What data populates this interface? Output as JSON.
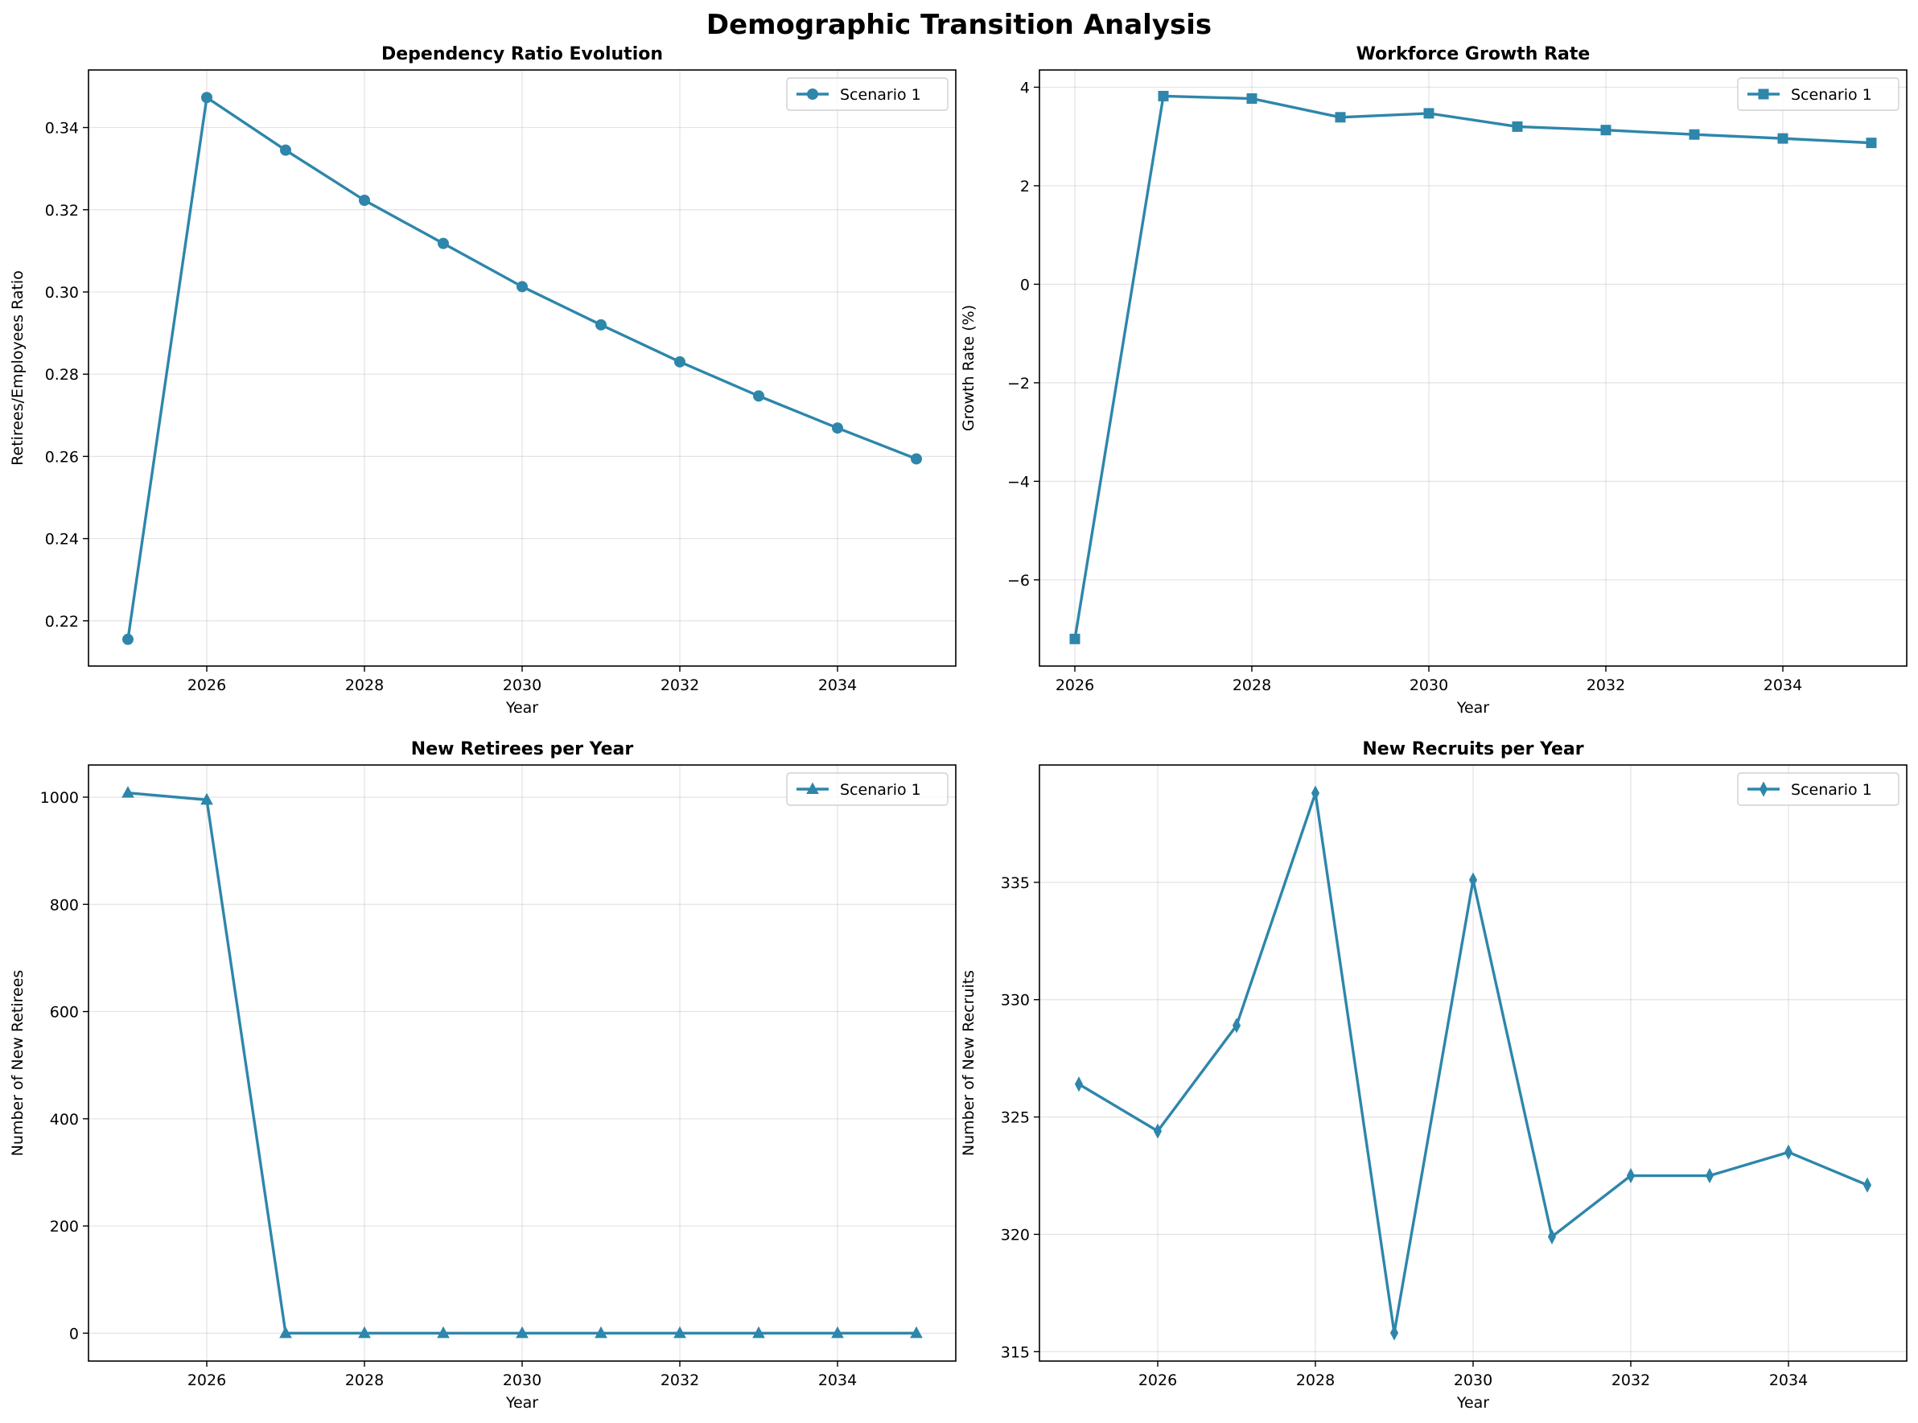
{
  "figure": {
    "suptitle": "Demographic Transition Analysis"
  },
  "colors": {
    "series": "#2E86AB"
  },
  "chart_data": [
    {
      "id": "dependency",
      "type": "line",
      "title": "Dependency Ratio Evolution",
      "xlabel": "Year",
      "ylabel": "Retirees/Employees Ratio",
      "marker": "circle",
      "legend": "top-right",
      "grid": true,
      "xlim": [
        2024.5,
        2035.5
      ],
      "ylim": [
        0.209,
        0.354
      ],
      "xticks": [
        2026,
        2028,
        2030,
        2032,
        2034
      ],
      "yticks": [
        0.22,
        0.24,
        0.26,
        0.28,
        0.3,
        0.32,
        0.34
      ],
      "ytick_decimals": 2,
      "series": [
        {
          "name": "Scenario 1",
          "x": [
            2025,
            2026,
            2027,
            2028,
            2029,
            2030,
            2031,
            2032,
            2033,
            2034,
            2035
          ],
          "y": [
            0.2155,
            0.3473,
            0.3345,
            0.3223,
            0.3118,
            0.3013,
            0.292,
            0.283,
            0.2747,
            0.2669,
            0.2594
          ]
        }
      ]
    },
    {
      "id": "growth",
      "type": "line",
      "title": "Workforce Growth Rate",
      "xlabel": "Year",
      "ylabel": "Growth Rate (%)",
      "marker": "square",
      "legend": "top-right",
      "grid": true,
      "xlim": [
        2025.6,
        2035.4
      ],
      "ylim": [
        -7.75,
        4.35
      ],
      "xticks": [
        2026,
        2028,
        2030,
        2032,
        2034
      ],
      "yticks": [
        -6,
        -4,
        -2,
        0,
        2,
        4
      ],
      "ytick_decimals": 0,
      "series": [
        {
          "name": "Scenario 1",
          "x": [
            2026,
            2027,
            2028,
            2029,
            2030,
            2031,
            2032,
            2033,
            2034,
            2035
          ],
          "y": [
            -7.2,
            3.82,
            3.77,
            3.39,
            3.47,
            3.2,
            3.13,
            3.04,
            2.96,
            2.87
          ]
        }
      ]
    },
    {
      "id": "retirees",
      "type": "line",
      "title": "New Retirees per Year",
      "xlabel": "Year",
      "ylabel": "Number of New Retirees",
      "marker": "triangle",
      "legend": "top-right",
      "grid": true,
      "xlim": [
        2024.5,
        2035.5
      ],
      "ylim": [
        -52,
        1060
      ],
      "xticks": [
        2026,
        2028,
        2030,
        2032,
        2034
      ],
      "yticks": [
        0,
        200,
        400,
        600,
        800,
        1000
      ],
      "ytick_decimals": 0,
      "series": [
        {
          "name": "Scenario 1",
          "x": [
            2025,
            2026,
            2027,
            2028,
            2029,
            2030,
            2031,
            2032,
            2033,
            2034,
            2035
          ],
          "y": [
            1008,
            995,
            0,
            0,
            0,
            0,
            0,
            0,
            0,
            0,
            0
          ]
        }
      ]
    },
    {
      "id": "recruits",
      "type": "line",
      "title": "New Recruits per Year",
      "xlabel": "Year",
      "ylabel": "Number of New Recruits",
      "marker": "thin_diamond",
      "legend": "top-right",
      "grid": true,
      "xlim": [
        2024.5,
        2035.5
      ],
      "ylim": [
        314.6,
        340.0
      ],
      "xticks": [
        2026,
        2028,
        2030,
        2032,
        2034
      ],
      "yticks": [
        315,
        320,
        325,
        330,
        335
      ],
      "ytick_decimals": 0,
      "series": [
        {
          "name": "Scenario 1",
          "x": [
            2025,
            2026,
            2027,
            2028,
            2029,
            2030,
            2031,
            2032,
            2033,
            2034,
            2035
          ],
          "y": [
            326.4,
            324.4,
            328.9,
            338.8,
            315.8,
            335.1,
            319.9,
            322.5,
            322.5,
            323.5,
            322.1
          ]
        }
      ]
    }
  ]
}
